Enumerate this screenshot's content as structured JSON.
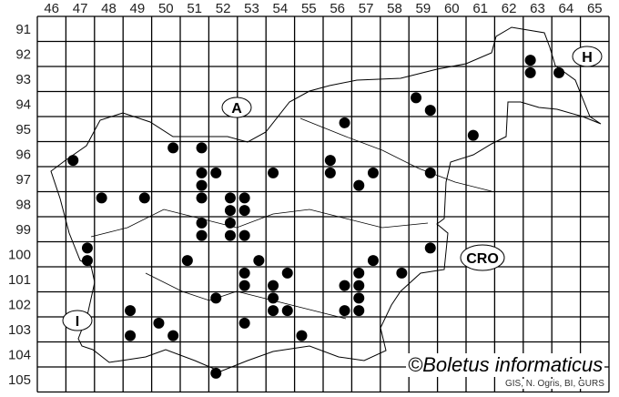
{
  "grid": {
    "columns": [
      "46",
      "47",
      "48",
      "49",
      "50",
      "51",
      "52",
      "53",
      "54",
      "55",
      "56",
      "57",
      "58",
      "59",
      "60",
      "61",
      "62",
      "63",
      "64",
      "65"
    ],
    "rows": [
      "91",
      "92",
      "93",
      "94",
      "95",
      "96",
      "97",
      "98",
      "99",
      "100",
      "101",
      "102",
      "103",
      "104",
      "105"
    ]
  },
  "country_labels": {
    "austria": "A",
    "hungary": "H",
    "croatia": "CRO",
    "italy": "I"
  },
  "copyright": "©Boletus informaticus",
  "credit": "GIS, N. Ogris, BI, GURS",
  "colors": {
    "dot": "#000000",
    "grid": "#000000",
    "background": "#ffffff"
  },
  "records": [
    [
      47.25,
      96.75
    ],
    [
      50.75,
      96.25
    ],
    [
      51.75,
      96.25
    ],
    [
      51.75,
      97.25
    ],
    [
      52.25,
      97.25
    ],
    [
      51.75,
      97.75
    ],
    [
      54.25,
      97.25
    ],
    [
      48.25,
      98.25
    ],
    [
      49.75,
      98.25
    ],
    [
      51.75,
      98.25
    ],
    [
      52.75,
      98.25
    ],
    [
      53.25,
      98.25
    ],
    [
      52.75,
      98.75
    ],
    [
      53.25,
      98.75
    ],
    [
      51.75,
      99.25
    ],
    [
      52.75,
      99.25
    ],
    [
      51.75,
      99.75
    ],
    [
      52.75,
      99.75
    ],
    [
      53.25,
      99.75
    ],
    [
      47.75,
      100.25
    ],
    [
      47.75,
      100.75
    ],
    [
      51.25,
      100.75
    ],
    [
      53.75,
      100.75
    ],
    [
      53.25,
      101.25
    ],
    [
      54.75,
      101.25
    ],
    [
      53.25,
      101.75
    ],
    [
      54.25,
      101.75
    ],
    [
      54.25,
      102.25
    ],
    [
      54.25,
      102.75
    ],
    [
      54.75,
      102.75
    ],
    [
      52.25,
      102.25
    ],
    [
      49.25,
      102.75
    ],
    [
      49.25,
      103.75
    ],
    [
      50.25,
      103.25
    ],
    [
      50.75,
      103.75
    ],
    [
      53.25,
      103.25
    ],
    [
      55.25,
      103.75
    ],
    [
      52.25,
      105.25
    ],
    [
      63.25,
      92.75
    ],
    [
      63.25,
      93.25
    ],
    [
      64.25,
      93.25
    ],
    [
      59.25,
      94.25
    ],
    [
      59.75,
      94.75
    ],
    [
      56.75,
      95.25
    ],
    [
      61.25,
      95.75
    ],
    [
      56.25,
      96.75
    ],
    [
      56.25,
      97.25
    ],
    [
      57.75,
      97.25
    ],
    [
      59.75,
      97.25
    ],
    [
      57.25,
      97.75
    ],
    [
      59.75,
      100.25
    ],
    [
      57.75,
      100.75
    ],
    [
      58.75,
      101.25
    ],
    [
      57.25,
      101.25
    ],
    [
      56.75,
      101.75
    ],
    [
      57.25,
      101.75
    ],
    [
      57.25,
      102.25
    ],
    [
      56.75,
      102.75
    ],
    [
      57.25,
      102.75
    ]
  ]
}
